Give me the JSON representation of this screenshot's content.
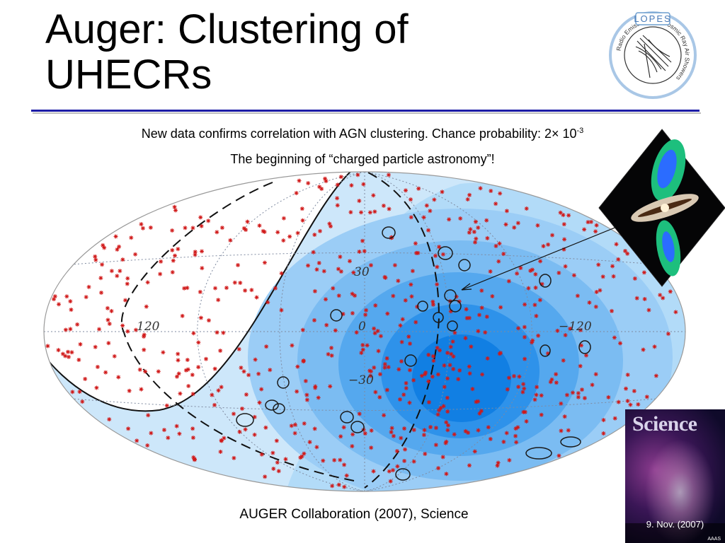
{
  "slide": {
    "title_line1": "Auger: Clustering of",
    "title_line2": "UHECRs",
    "subtitle_prefix": "New data confirms correlation with AGN clustering. Chance probability: 2× 10",
    "subtitle_exponent": "-3",
    "tagline": "The beginning of “charged particle astronomy”!",
    "caption": "AUGER Collaboration (2007), Science"
  },
  "logo": {
    "name": "LOPES",
    "ring_text": "Radio Emission from Cosmic Ray Air Showers"
  },
  "cover": {
    "magazine": "Science",
    "date": "9. Nov. (2007)",
    "publisher_mark": "AAAS"
  },
  "sky_map": {
    "projection": "Hammer-Aitoff",
    "labels": {
      "lat_30": "30",
      "lat_0": "0",
      "lat_m30": "−30",
      "lon_120": "120",
      "lon_m120": "−120"
    },
    "colors": {
      "exposure": [
        "#cde7fa",
        "#a6d4f7",
        "#7dbef3",
        "#55a9ef",
        "#2e93ea",
        "#0e7fe4"
      ],
      "events": "#d01818",
      "agn_circles": "#1a1a1a"
    }
  }
}
